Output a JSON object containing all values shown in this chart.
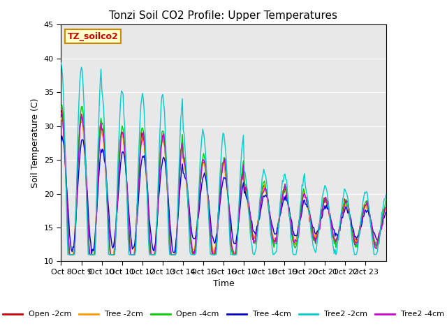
{
  "title": "Tonzi Soil CO2 Profile: Upper Temperatures",
  "xlabel": "Time",
  "ylabel": "Soil Temperature (C)",
  "ylim": [
    10,
    45
  ],
  "yticks": [
    10,
    15,
    20,
    25,
    30,
    35,
    40,
    45
  ],
  "background_color": "#ffffff",
  "plot_bg_color": "#e8e8e8",
  "series_colors": {
    "Open -2cm": "#cc0000",
    "Tree -2cm": "#ff9900",
    "Open -4cm": "#00cc00",
    "Tree -4cm": "#0000cc",
    "Tree2 -2cm": "#00cccc",
    "Tree2 -4cm": "#cc00cc"
  },
  "x_tick_labels": [
    "Oct 8",
    "Oct 9",
    "Oct 10",
    "Oct 11",
    "Oct 12",
    "Oct 13",
    "Oct 14",
    "Oct 15",
    "Oct 16",
    "Oct 17",
    "Oct 18",
    "Oct 19",
    "Oct 20",
    "Oct 21",
    "Oct 22",
    "Oct 23"
  ],
  "watermark_text": "TZ_soilco2",
  "watermark_bg": "#ffffcc",
  "watermark_fg": "#cc0000"
}
